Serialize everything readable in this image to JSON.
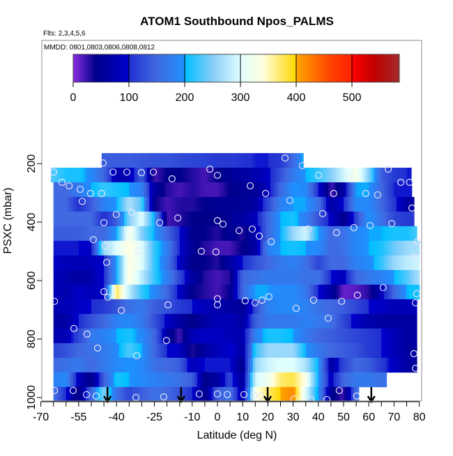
{
  "chart_data": {
    "type": "heatmap",
    "title": "ATOM1 Southbound Npos_PALMS",
    "subtitle": "Flts: 2,3,4,5,6",
    "annotation": "MMDD: 0801,0803,0806,0808,0812",
    "xlabel": "Latitude (deg N)",
    "ylabel": "PSXC (mbar)",
    "xlim": [
      -70,
      80
    ],
    "ylim": [
      1012,
      -221
    ],
    "x_ticks": [
      -70,
      -65,
      -60,
      -55,
      -50,
      -45,
      -40,
      -35,
      -30,
      -25,
      -20,
      -15,
      -10,
      -5,
      0,
      5,
      10,
      15,
      20,
      25,
      30,
      35,
      40,
      45,
      50,
      55,
      60,
      65,
      70,
      75,
      80
    ],
    "x_tick_labels": [
      "-70",
      "-55",
      "-40",
      "-25",
      "-10",
      "0",
      "10",
      "20",
      "30",
      "40",
      "50",
      "60",
      "70",
      "80"
    ],
    "x_tick_label_values": [
      -70,
      -55,
      -40,
      -25,
      -10,
      0,
      10,
      20,
      30,
      40,
      50,
      60,
      70,
      80
    ],
    "y_ticks": [
      200,
      400,
      600,
      800,
      1000
    ],
    "y_tick_labels": [
      "200",
      "400",
      "600",
      "800",
      "1000"
    ],
    "colorbar": {
      "range": [
        0,
        585
      ],
      "ticks": [
        0,
        100,
        200,
        300,
        400,
        500
      ],
      "tick_labels": [
        "0",
        "100",
        "200",
        "300",
        "400",
        "500"
      ],
      "stops": [
        [
          0,
          "#8a2be2"
        ],
        [
          40,
          "#00008b"
        ],
        [
          99,
          "#0000cd"
        ],
        [
          101,
          "#2030d0"
        ],
        [
          150,
          "#4169e1"
        ],
        [
          199,
          "#1e90ff"
        ],
        [
          201,
          "#00bfff"
        ],
        [
          250,
          "#87cefa"
        ],
        [
          300,
          "#e0ffff"
        ],
        [
          340,
          "#ffffe0"
        ],
        [
          399,
          "#ffd700"
        ],
        [
          401,
          "#ffa500"
        ],
        [
          460,
          "#ff4500"
        ],
        [
          499,
          "#ff2000"
        ],
        [
          501,
          "#ff0000"
        ],
        [
          540,
          "#c00000"
        ],
        [
          585,
          "#a52a2a"
        ]
      ]
    },
    "lat_nodes": [
      -65,
      -60,
      -55,
      -50,
      -45,
      -40,
      -35,
      -30,
      -25,
      -20,
      -15,
      -10,
      -5,
      0,
      5,
      10,
      15,
      20,
      25,
      30,
      35,
      40,
      45,
      50,
      55,
      60,
      65,
      70,
      75,
      80
    ],
    "rows": [
      {
        "p": [
          164,
          214
        ],
        "lat": [
          -45.9,
          34
        ],
        "values": [
          null,
          null,
          null,
          null,
          140,
          140,
          140,
          135,
          130,
          130,
          125,
          120,
          115,
          110,
          110,
          105,
          100,
          100,
          110,
          150,
          220,
          null,
          null,
          null,
          null,
          null,
          null,
          null,
          null,
          null
        ]
      },
      {
        "p": [
          214,
          264
        ],
        "lat": [
          -66,
          76.8
        ],
        "values": [
          230,
          210,
          210,
          190,
          150,
          70,
          80,
          140,
          20,
          40,
          40,
          30,
          20,
          40,
          50,
          60,
          70,
          90,
          130,
          170,
          200,
          220,
          250,
          290,
          330,
          250,
          140,
          110,
          100,
          null
        ]
      },
      {
        "p": [
          264,
          314
        ],
        "lat": [
          -65,
          77
        ],
        "values": [
          150,
          150,
          170,
          200,
          220,
          210,
          200,
          180,
          60,
          30,
          20,
          30,
          20,
          20,
          40,
          50,
          50,
          80,
          150,
          200,
          190,
          100,
          20,
          60,
          200,
          200,
          150,
          100,
          100,
          null
        ]
      },
      {
        "p": [
          314,
          364
        ],
        "lat": [
          -65,
          77.9
        ],
        "values": [
          150,
          150,
          100,
          140,
          180,
          200,
          270,
          230,
          40,
          20,
          30,
          30,
          40,
          50,
          50,
          50,
          60,
          120,
          180,
          200,
          200,
          160,
          60,
          100,
          190,
          190,
          150,
          110,
          60,
          null
        ]
      },
      {
        "p": [
          364,
          414
        ],
        "lat": [
          -65,
          77.9
        ],
        "values": [
          150,
          150,
          150,
          150,
          100,
          140,
          250,
          300,
          200,
          20,
          30,
          40,
          40,
          40,
          50,
          60,
          80,
          150,
          200,
          210,
          180,
          130,
          90,
          40,
          120,
          200,
          160,
          120,
          110,
          null
        ]
      },
      {
        "p": [
          414,
          464
        ],
        "lat": [
          -65,
          79
        ],
        "values": [
          140,
          140,
          140,
          150,
          150,
          200,
          330,
          250,
          200,
          150,
          100,
          40,
          40,
          30,
          50,
          30,
          70,
          150,
          200,
          260,
          290,
          200,
          150,
          160,
          190,
          200,
          200,
          210,
          210,
          230
        ]
      },
      {
        "p": [
          464,
          514
        ],
        "lat": [
          -65,
          80
        ],
        "values": [
          100,
          100,
          100,
          90,
          260,
          300,
          340,
          300,
          220,
          180,
          100,
          50,
          30,
          20,
          20,
          40,
          60,
          180,
          200,
          210,
          200,
          190,
          150,
          160,
          190,
          200,
          210,
          240,
          260,
          270
        ]
      },
      {
        "p": [
          514,
          564
        ],
        "lat": [
          -65,
          80
        ],
        "values": [
          90,
          80,
          80,
          80,
          100,
          200,
          340,
          300,
          220,
          170,
          90,
          40,
          40,
          30,
          60,
          100,
          130,
          150,
          170,
          180,
          160,
          120,
          150,
          150,
          180,
          190,
          220,
          260,
          280,
          290
        ]
      },
      {
        "p": [
          564,
          614
        ],
        "lat": [
          -65,
          80
        ],
        "values": [
          80,
          70,
          60,
          70,
          100,
          200,
          340,
          280,
          220,
          180,
          120,
          60,
          30,
          20,
          30,
          150,
          160,
          170,
          170,
          170,
          160,
          160,
          100,
          80,
          150,
          170,
          180,
          200,
          230,
          270
        ]
      },
      {
        "p": [
          614,
          664
        ],
        "lat": [
          -65,
          80
        ],
        "values": [
          80,
          70,
          90,
          80,
          90,
          380,
          280,
          220,
          190,
          150,
          90,
          40,
          30,
          20,
          40,
          150,
          200,
          200,
          190,
          190,
          170,
          100,
          60,
          10,
          15,
          30,
          80,
          150,
          200,
          210
        ]
      },
      {
        "p": [
          664,
          714
        ],
        "lat": [
          -65,
          79
        ],
        "values": [
          70,
          80,
          90,
          100,
          110,
          130,
          160,
          170,
          140,
          130,
          110,
          100,
          80,
          70,
          60,
          50,
          120,
          180,
          190,
          190,
          180,
          160,
          150,
          140,
          120,
          100,
          90,
          80,
          80,
          80
        ]
      },
      {
        "p": [
          714,
          764
        ],
        "lat": [
          -65,
          79
        ],
        "values": [
          60,
          60,
          100,
          130,
          150,
          180,
          190,
          170,
          130,
          90,
          60,
          40,
          60,
          80,
          80,
          60,
          140,
          170,
          170,
          170,
          180,
          170,
          160,
          120,
          90,
          70,
          60,
          60,
          60,
          60
        ]
      },
      {
        "p": [
          764,
          814
        ],
        "lat": [
          -65,
          79
        ],
        "values": [
          70,
          80,
          120,
          170,
          180,
          200,
          210,
          190,
          150,
          60,
          20,
          80,
          90,
          90,
          80,
          70,
          180,
          210,
          210,
          200,
          170,
          150,
          140,
          130,
          120,
          110,
          100,
          80,
          60,
          60
        ]
      },
      {
        "p": [
          814,
          864
        ],
        "lat": [
          -65,
          79
        ],
        "values": [
          120,
          130,
          150,
          160,
          170,
          190,
          230,
          200,
          150,
          100,
          90,
          30,
          60,
          80,
          100,
          60,
          220,
          260,
          260,
          260,
          200,
          170,
          150,
          140,
          130,
          110,
          100,
          80,
          60,
          60
        ]
      },
      {
        "p": [
          864,
          914
        ],
        "lat": [
          -65,
          79
        ],
        "values": [
          150,
          160,
          170,
          150,
          170,
          190,
          200,
          190,
          160,
          150,
          140,
          80,
          100,
          100,
          100,
          40,
          260,
          290,
          300,
          300,
          270,
          200,
          60,
          120,
          150,
          140,
          110,
          90,
          60,
          60
        ]
      },
      {
        "p": [
          914,
          964
        ],
        "lat": [
          -65,
          67
        ],
        "values": [
          180,
          190,
          80,
          40,
          140,
          210,
          200,
          190,
          180,
          170,
          160,
          140,
          40,
          60,
          120,
          50,
          290,
          320,
          370,
          380,
          330,
          200,
          80,
          150,
          170,
          170,
          160,
          160,
          null,
          null
        ]
      },
      {
        "p": [
          964,
          1012
        ],
        "lat": [
          -65,
          56
        ],
        "values": [
          160,
          100,
          30,
          150,
          250,
          160,
          120,
          140,
          160,
          150,
          130,
          100,
          40,
          140,
          160,
          60,
          330,
          370,
          400,
          420,
          300,
          190,
          50,
          20,
          160,
          160,
          null,
          null,
          null,
          null
        ]
      }
    ],
    "samples": [
      [
        -45.3,
        198
      ],
      [
        -64.9,
        229
      ],
      [
        -41.4,
        229
      ],
      [
        -35.9,
        229
      ],
      [
        -30.1,
        231
      ],
      [
        -25.4,
        229
      ],
      [
        -18.0,
        252
      ],
      [
        -3.0,
        219
      ],
      [
        0,
        240
      ],
      [
        -61.6,
        264
      ],
      [
        -58.8,
        276
      ],
      [
        -54.4,
        288
      ],
      [
        -50.3,
        302
      ],
      [
        -45.9,
        302
      ],
      [
        -53.6,
        329
      ],
      [
        -40.1,
        374
      ],
      [
        -34.0,
        367
      ],
      [
        -45.0,
        402
      ],
      [
        -22.9,
        402
      ],
      [
        -15.7,
        386
      ],
      [
        0,
        395
      ],
      [
        2.2,
        407
      ],
      [
        -49.2,
        460
      ],
      [
        -44.5,
        481
      ],
      [
        -31.2,
        500
      ],
      [
        -6.4,
        500
      ],
      [
        -0.6,
        502
      ],
      [
        -43.9,
        538
      ],
      [
        26.8,
        181
      ],
      [
        33.7,
        207
      ],
      [
        40.1,
        240
      ],
      [
        52.2,
        240
      ],
      [
        67.7,
        219
      ],
      [
        13.0,
        276
      ],
      [
        19.1,
        302
      ],
      [
        46.1,
        302
      ],
      [
        58.8,
        302
      ],
      [
        63.5,
        307
      ],
      [
        72.7,
        264
      ],
      [
        76.2,
        264
      ],
      [
        28.7,
        326
      ],
      [
        77.1,
        352
      ],
      [
        41.7,
        371
      ],
      [
        8.6,
        429
      ],
      [
        13.8,
        424
      ],
      [
        16.6,
        448
      ],
      [
        21.3,
        467
      ],
      [
        35.9,
        424
      ],
      [
        47.2,
        436
      ],
      [
        54.1,
        419
      ],
      [
        60.5,
        412
      ],
      [
        69.1,
        405
      ],
      [
        79.3,
        467
      ],
      [
        77.9,
        519
      ],
      [
        -45.0,
        638
      ],
      [
        -43.4,
        657
      ],
      [
        -64.6,
        671
      ],
      [
        -38.1,
        702
      ],
      [
        -19.6,
        683
      ],
      [
        0,
        662
      ],
      [
        0,
        683
      ],
      [
        -56.9,
        764
      ],
      [
        -51.7,
        783
      ],
      [
        -20.2,
        805
      ],
      [
        -47.5,
        831
      ],
      [
        -32.0,
        857
      ],
      [
        -64.6,
        976
      ],
      [
        -57.2,
        976
      ],
      [
        -51.9,
        990
      ],
      [
        -48.1,
        995
      ],
      [
        -32.3,
        1000
      ],
      [
        -21.3,
        998
      ],
      [
        -7.2,
        988
      ],
      [
        0,
        988
      ],
      [
        3.9,
        990
      ],
      [
        65.7,
        624
      ],
      [
        55.5,
        650
      ],
      [
        79.0,
        645
      ],
      [
        11.0,
        669
      ],
      [
        14.9,
        676
      ],
      [
        17.7,
        667
      ],
      [
        20.4,
        655
      ],
      [
        38.1,
        667
      ],
      [
        49.2,
        671
      ],
      [
        31.2,
        695
      ],
      [
        78.5,
        676
      ],
      [
        43.9,
        729
      ],
      [
        77.9,
        850
      ],
      [
        78.5,
        900
      ],
      [
        10.5,
        990
      ],
      [
        14.4,
        993
      ],
      [
        17.1,
        995
      ],
      [
        48.3,
        976
      ],
      [
        55.2,
        995
      ],
      [
        30.4,
        1005
      ],
      [
        37.0,
        1010
      ],
      [
        43.4,
        1007
      ]
    ],
    "arrows_lat": [
      -43.6,
      -14.4,
      19.9,
      61.0
    ],
    "sample_color": "#e6e6fa",
    "frame_color": "#888888"
  }
}
